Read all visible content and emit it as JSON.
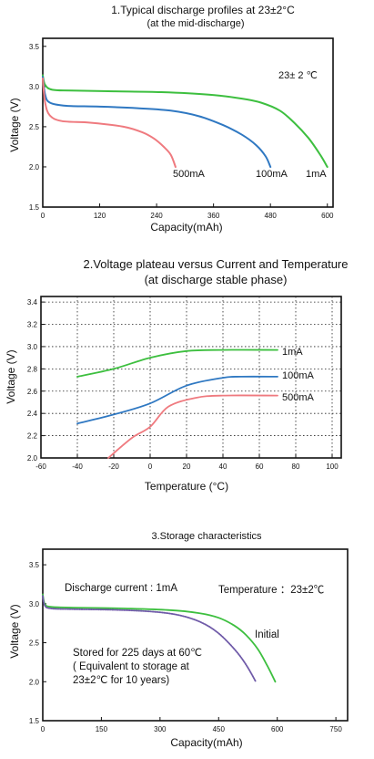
{
  "colors": {
    "green": "#3dbf3f",
    "blue": "#2f78c2",
    "red": "#ef7a7f",
    "purple": "#6f5aa8"
  },
  "chart_data": [
    {
      "type": "line",
      "title": "1.Typical discharge profiles at 23±2°C",
      "subtitle": "(at the mid-discharge)",
      "xlabel": "Capacity(mAh)",
      "ylabel": "Voltage (V)",
      "xlim": [
        0,
        612
      ],
      "ylim": [
        1.5,
        3.6
      ],
      "xticks": [
        "0",
        "120",
        "240",
        "360",
        "480",
        "600"
      ],
      "xtick_values": [
        0,
        120,
        240,
        360,
        480,
        600
      ],
      "yticks": [
        "1.5",
        "2.0",
        "2.5",
        "3.0",
        "3.5"
      ],
      "ytick_values": [
        1.5,
        2.0,
        2.5,
        3.0,
        3.5
      ],
      "grid": false,
      "annotation": "23± 2 ℃",
      "series": [
        {
          "name": "1mA",
          "color": "green",
          "points": [
            [
              0,
              3.14
            ],
            [
              5,
              3.02
            ],
            [
              20,
              2.96
            ],
            [
              60,
              2.95
            ],
            [
              150,
              2.94
            ],
            [
              250,
              2.93
            ],
            [
              350,
              2.9
            ],
            [
              420,
              2.85
            ],
            [
              460,
              2.8
            ],
            [
              500,
              2.7
            ],
            [
              530,
              2.55
            ],
            [
              560,
              2.36
            ],
            [
              585,
              2.15
            ],
            [
              600,
              2.0
            ]
          ]
        },
        {
          "name": "100mA",
          "color": "blue",
          "points": [
            [
              0,
              3.12
            ],
            [
              5,
              2.9
            ],
            [
              15,
              2.8
            ],
            [
              50,
              2.76
            ],
            [
              120,
              2.75
            ],
            [
              200,
              2.73
            ],
            [
              270,
              2.7
            ],
            [
              330,
              2.63
            ],
            [
              380,
              2.52
            ],
            [
              420,
              2.4
            ],
            [
              450,
              2.27
            ],
            [
              470,
              2.13
            ],
            [
              480,
              2.0
            ]
          ]
        },
        {
          "name": "500mA",
          "color": "red",
          "points": [
            [
              0,
              3.1
            ],
            [
              5,
              2.8
            ],
            [
              15,
              2.64
            ],
            [
              40,
              2.57
            ],
            [
              100,
              2.55
            ],
            [
              170,
              2.5
            ],
            [
              210,
              2.43
            ],
            [
              235,
              2.35
            ],
            [
              255,
              2.25
            ],
            [
              270,
              2.15
            ],
            [
              280,
              2.0
            ]
          ]
        }
      ],
      "labels": [
        "500mA",
        "100mA",
        "1mA"
      ]
    },
    {
      "type": "line",
      "title": "2.Voltage plateau versus Current and Temperature",
      "subtitle": "(at discharge stable phase)",
      "xlabel": "Temperature (°C)",
      "ylabel": "Voltage (V)",
      "xlim": [
        -60,
        105
      ],
      "ylim": [
        2.0,
        3.45
      ],
      "xticks": [
        "-60",
        "-40",
        "-20",
        "0",
        "20",
        "40",
        "60",
        "80",
        "100"
      ],
      "xtick_values": [
        -60,
        -40,
        -20,
        0,
        20,
        40,
        60,
        80,
        100
      ],
      "yticks": [
        "2.0",
        "2.2",
        "2.4",
        "2.6",
        "2.8",
        "3.0",
        "3.2",
        "3.4"
      ],
      "ytick_values": [
        2.0,
        2.2,
        2.4,
        2.6,
        2.8,
        3.0,
        3.2,
        3.4
      ],
      "grid": true,
      "series": [
        {
          "name": "1mA",
          "color": "green",
          "points": [
            [
              -40,
              2.73
            ],
            [
              -20,
              2.8
            ],
            [
              0,
              2.9
            ],
            [
              20,
              2.96
            ],
            [
              40,
              2.97
            ],
            [
              70,
              2.97
            ]
          ]
        },
        {
          "name": "100mA",
          "color": "blue",
          "points": [
            [
              -40,
              2.31
            ],
            [
              -20,
              2.39
            ],
            [
              0,
              2.49
            ],
            [
              20,
              2.65
            ],
            [
              40,
              2.72
            ],
            [
              50,
              2.73
            ],
            [
              70,
              2.73
            ]
          ]
        },
        {
          "name": "500mA",
          "color": "red",
          "points": [
            [
              -23,
              2.0
            ],
            [
              -10,
              2.18
            ],
            [
              0,
              2.28
            ],
            [
              10,
              2.46
            ],
            [
              25,
              2.54
            ],
            [
              40,
              2.56
            ],
            [
              70,
              2.56
            ]
          ]
        }
      ],
      "labels": [
        "1mA",
        "100mA",
        "500mA"
      ]
    },
    {
      "type": "line",
      "title": "3.Storage characteristics",
      "xlabel": "Capacity(mAh)",
      "ylabel": "Voltage (V)",
      "xlim": [
        0,
        780
      ],
      "ylim": [
        1.5,
        3.7
      ],
      "xticks": [
        "0",
        "150",
        "300",
        "450",
        "600",
        "750"
      ],
      "xtick_values": [
        0,
        150,
        300,
        450,
        600,
        750
      ],
      "yticks": [
        "1.5",
        "2.0",
        "2.5",
        "3.0",
        "3.5"
      ],
      "ytick_values": [
        1.5,
        2.0,
        2.5,
        3.0,
        3.5
      ],
      "grid": false,
      "annotations": [
        "Discharge current : 1mA",
        "Temperature ：23±2℃",
        "Initial",
        "Stored for 225 days at 60℃",
        "( Equivalent to storage at",
        "23±2℃ for 10 years)"
      ],
      "series": [
        {
          "name": "Initial",
          "color": "green",
          "points": [
            [
              0,
              3.12
            ],
            [
              5,
              3.0
            ],
            [
              20,
              2.96
            ],
            [
              80,
              2.95
            ],
            [
              200,
              2.94
            ],
            [
              320,
              2.92
            ],
            [
              400,
              2.88
            ],
            [
              450,
              2.82
            ],
            [
              490,
              2.72
            ],
            [
              520,
              2.6
            ],
            [
              550,
              2.42
            ],
            [
              575,
              2.2
            ],
            [
              595,
              2.0
            ]
          ]
        },
        {
          "name": "Stored for 225 days at 60℃",
          "color": "purple",
          "points": [
            [
              0,
              3.1
            ],
            [
              5,
              2.98
            ],
            [
              20,
              2.94
            ],
            [
              80,
              2.93
            ],
            [
              200,
              2.92
            ],
            [
              300,
              2.89
            ],
            [
              360,
              2.84
            ],
            [
              410,
              2.75
            ],
            [
              450,
              2.62
            ],
            [
              490,
              2.42
            ],
            [
              520,
              2.22
            ],
            [
              545,
              2.0
            ]
          ]
        }
      ]
    }
  ]
}
